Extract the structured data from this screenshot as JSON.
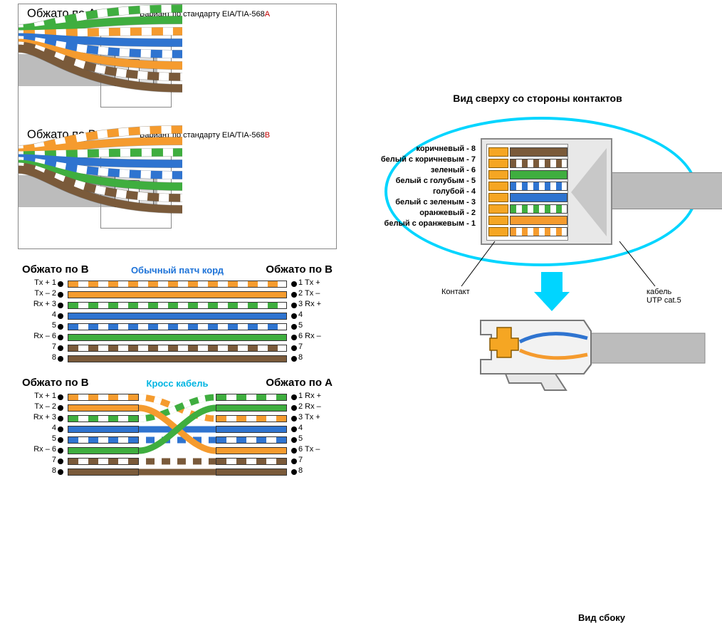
{
  "colors": {
    "green": "#3fae3f",
    "orange": "#f59b2e",
    "blue": "#2f74d0",
    "brown": "#7a5a3a",
    "white": "#ffffff",
    "sheath": "#bcbcbc",
    "ellipse": "#00d5ff",
    "contact": "#f5a623"
  },
  "crimp": {
    "A": {
      "title": "Обжато по A",
      "subtitle_prefix": "Вариант по стандарту EIA/TIA-568",
      "subtitle_suffix": "A",
      "wires": [
        {
          "color": "#3fae3f",
          "striped": true
        },
        {
          "color": "#3fae3f",
          "striped": false
        },
        {
          "color": "#f59b2e",
          "striped": true
        },
        {
          "color": "#2f74d0",
          "striped": false
        },
        {
          "color": "#2f74d0",
          "striped": true
        },
        {
          "color": "#f59b2e",
          "striped": false
        },
        {
          "color": "#7a5a3a",
          "striped": true
        },
        {
          "color": "#7a5a3a",
          "striped": false
        }
      ]
    },
    "B": {
      "title": "Обжато по B",
      "subtitle_prefix": "Вариант по стандарту EIA/TIA-568",
      "subtitle_suffix": "B",
      "wires": [
        {
          "color": "#f59b2e",
          "striped": true
        },
        {
          "color": "#f59b2e",
          "striped": false
        },
        {
          "color": "#3fae3f",
          "striped": true
        },
        {
          "color": "#2f74d0",
          "striped": false
        },
        {
          "color": "#2f74d0",
          "striped": true
        },
        {
          "color": "#3fae3f",
          "striped": false
        },
        {
          "color": "#7a5a3a",
          "striped": true
        },
        {
          "color": "#7a5a3a",
          "striped": false
        }
      ]
    }
  },
  "pinouts": {
    "straight": {
      "left_title": "Обжато по B",
      "center_title": "Обычный патч корд",
      "center_color": "#1e73d8",
      "right_title": "Обжато по B",
      "rows": [
        {
          "l": "Tx + 1",
          "r": "1 Tx +",
          "color": "#f59b2e",
          "striped": true
        },
        {
          "l": "Tx – 2",
          "r": "2 Tx –",
          "color": "#f59b2e",
          "striped": false
        },
        {
          "l": "Rx + 3",
          "r": "3 Rx +",
          "color": "#3fae3f",
          "striped": true
        },
        {
          "l": "4",
          "r": "4",
          "color": "#2f74d0",
          "striped": false
        },
        {
          "l": "5",
          "r": "5",
          "color": "#2f74d0",
          "striped": true
        },
        {
          "l": "Rx – 6",
          "r": "6 Rx –",
          "color": "#3fae3f",
          "striped": false
        },
        {
          "l": "7",
          "r": "7",
          "color": "#7a5a3a",
          "striped": true
        },
        {
          "l": "8",
          "r": "8",
          "color": "#7a5a3a",
          "striped": false
        }
      ]
    },
    "cross": {
      "left_title": "Обжато по B",
      "center_title": "Кросс кабель",
      "center_color": "#00b5e2",
      "right_title": "Обжато по A",
      "rows": [
        {
          "l": "Tx + 1",
          "r": "1 Rx +",
          "lc": "#f59b2e",
          "ls": true,
          "rc": "#3fae3f",
          "rs": true
        },
        {
          "l": "Tx – 2",
          "r": "2 Rx –",
          "lc": "#f59b2e",
          "ls": false,
          "rc": "#3fae3f",
          "rs": false
        },
        {
          "l": "Rx + 3",
          "r": "3 Tx +",
          "lc": "#3fae3f",
          "ls": true,
          "rc": "#f59b2e",
          "rs": true
        },
        {
          "l": "4",
          "r": "4",
          "lc": "#2f74d0",
          "ls": false,
          "rc": "#2f74d0",
          "rs": false
        },
        {
          "l": "5",
          "r": "5",
          "lc": "#2f74d0",
          "ls": true,
          "rc": "#2f74d0",
          "rs": true
        },
        {
          "l": "Rx – 6",
          "r": "6 Tx –",
          "lc": "#3fae3f",
          "ls": false,
          "rc": "#f59b2e",
          "rs": false
        },
        {
          "l": "7",
          "r": "7",
          "lc": "#7a5a3a",
          "ls": true,
          "rc": "#7a5a3a",
          "rs": true
        },
        {
          "l": "8",
          "r": "8",
          "lc": "#7a5a3a",
          "ls": false,
          "rc": "#7a5a3a",
          "rs": false
        }
      ],
      "cross_map": [
        [
          1,
          3
        ],
        [
          2,
          6
        ],
        [
          3,
          1
        ],
        [
          6,
          2
        ]
      ]
    }
  },
  "rj45": {
    "title_top": "Вид сверху со стороны контактов",
    "title_side": "Вид сбоку",
    "callout_contact": "Контакт",
    "callout_cable": "кабель\nUTP cat.5",
    "pins": [
      {
        "n": 8,
        "label": "коричневый - 8",
        "color": "#7a5a3a",
        "striped": false
      },
      {
        "n": 7,
        "label": "белый с коричневым - 7",
        "color": "#7a5a3a",
        "striped": true
      },
      {
        "n": 6,
        "label": "зеленый - 6",
        "color": "#3fae3f",
        "striped": false
      },
      {
        "n": 5,
        "label": "белый с голубым - 5",
        "color": "#2f74d0",
        "striped": true
      },
      {
        "n": 4,
        "label": "голубой - 4",
        "color": "#2f74d0",
        "striped": false
      },
      {
        "n": 3,
        "label": "белый с зеленым - 3",
        "color": "#3fae3f",
        "striped": true
      },
      {
        "n": 2,
        "label": "оранжевый - 2",
        "color": "#f59b2e",
        "striped": false
      },
      {
        "n": 1,
        "label": "белый с оранжевым - 1",
        "color": "#f59b2e",
        "striped": true
      }
    ]
  }
}
